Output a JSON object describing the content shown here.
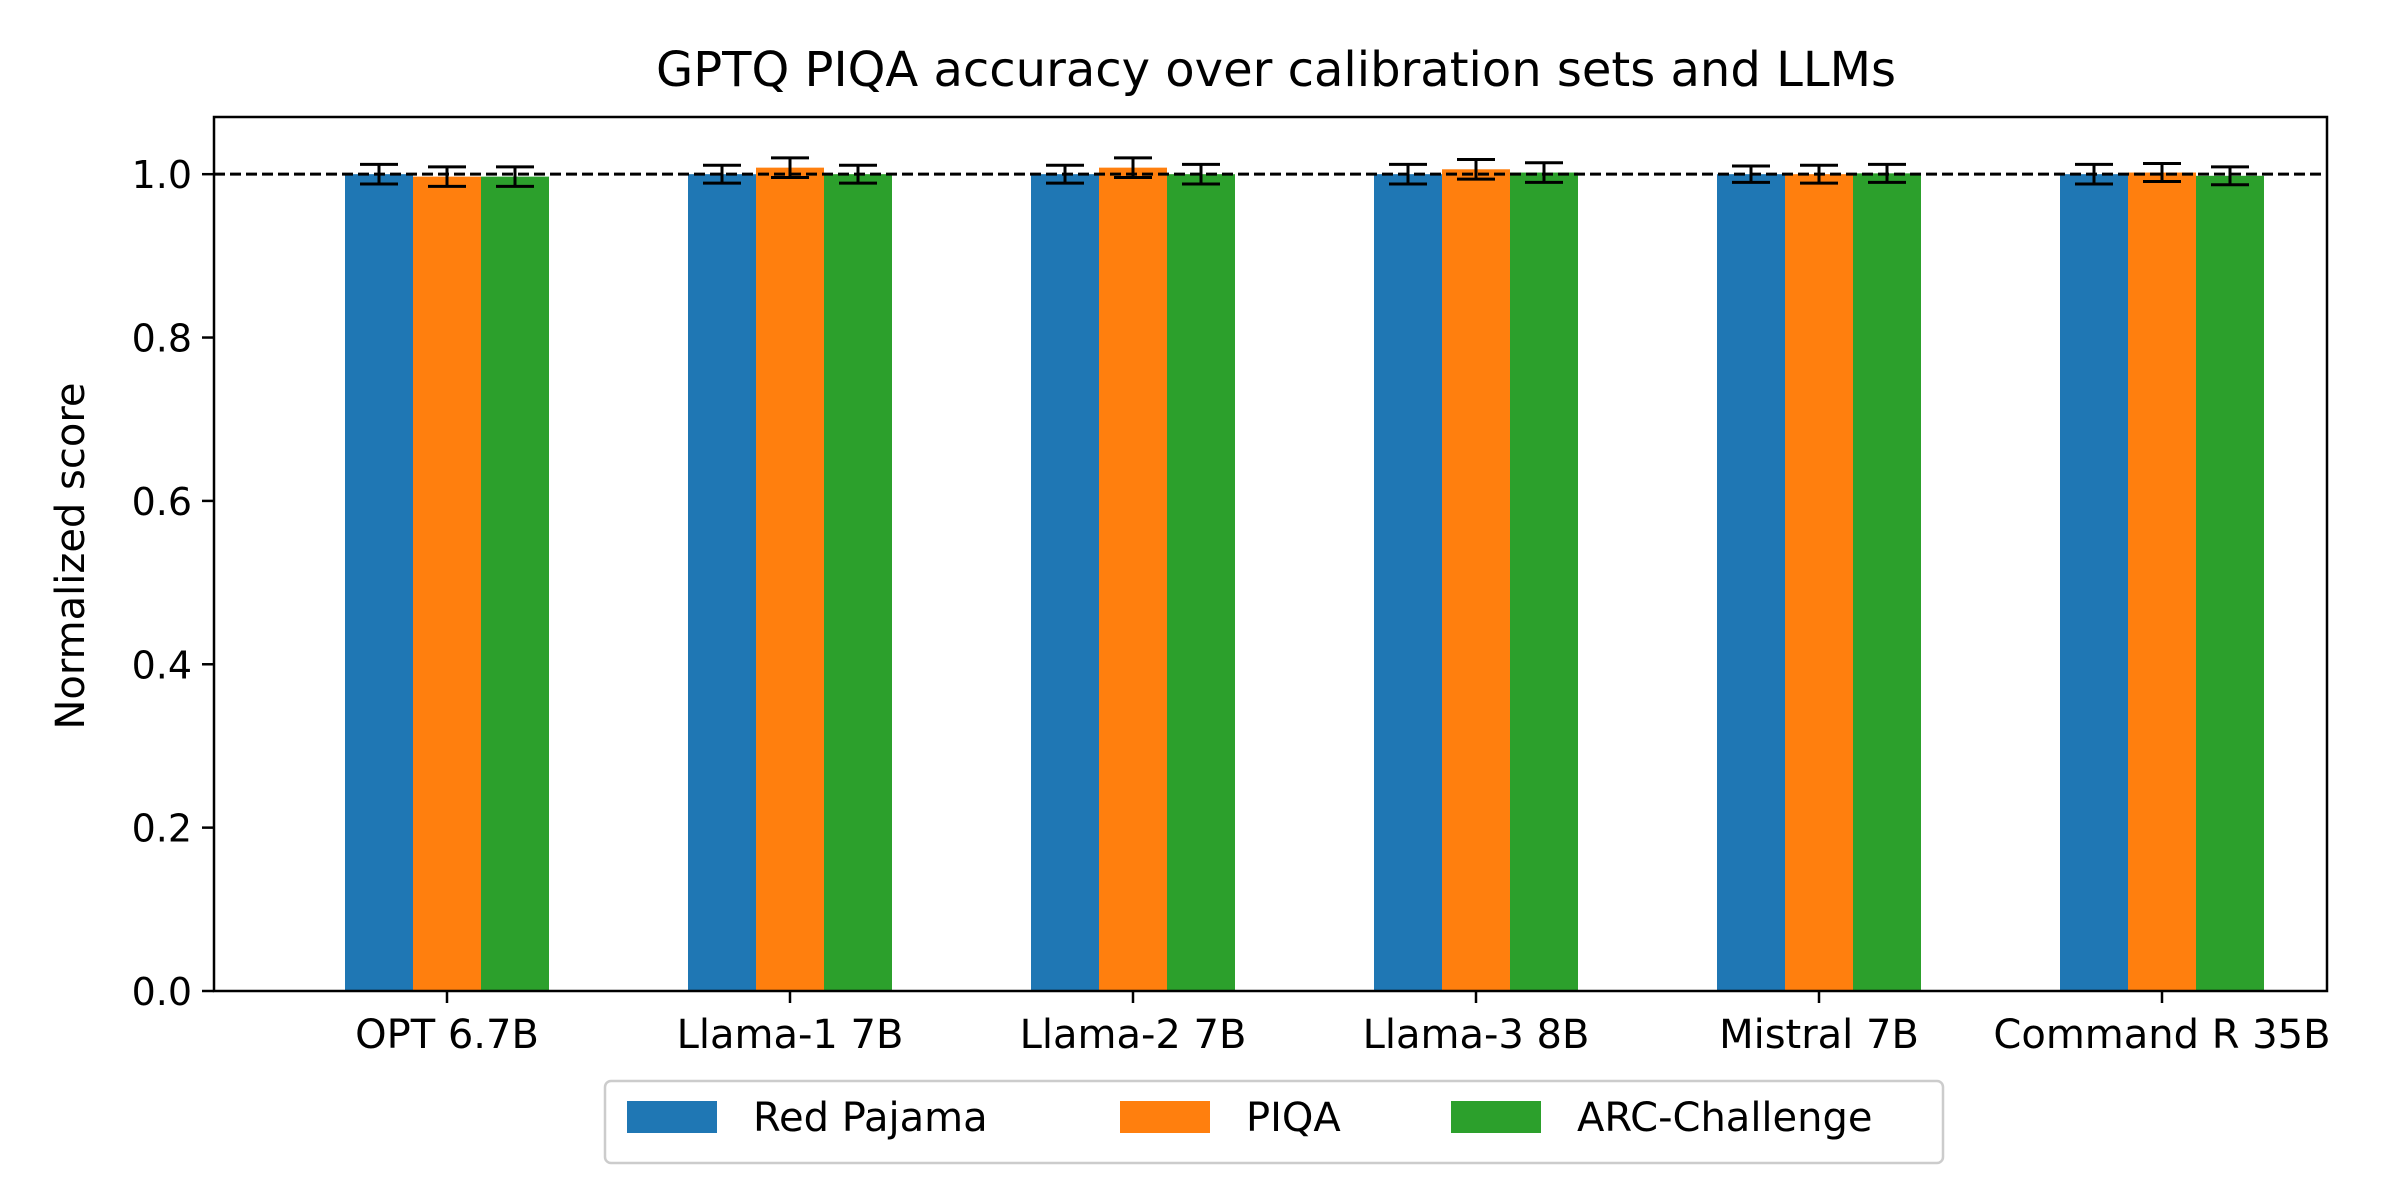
{
  "chart_data": {
    "type": "bar",
    "title": "GPTQ PIQA accuracy over calibration sets and LLMs",
    "xlabel": "",
    "ylabel": "Normalized score",
    "ylim": [
      0,
      1.07
    ],
    "yticks": [
      0.0,
      0.2,
      0.4,
      0.6,
      0.8,
      1.0
    ],
    "ytick_labels": [
      "0.0",
      "0.2",
      "0.4",
      "0.6",
      "0.8",
      "1.0"
    ],
    "reference_line": 1.0,
    "grid": false,
    "legend_position": "bottom-center",
    "categories": [
      "OPT 6.7B",
      "Llama-1 7B",
      "Llama-2 7B",
      "Llama-3 8B",
      "Mistral 7B",
      "Command R 35B"
    ],
    "series": [
      {
        "name": "Red Pajama",
        "color": "#1f77b4",
        "values": [
          1.0,
          1.0,
          1.0,
          1.0,
          1.0,
          1.0
        ],
        "errors": [
          0.012,
          0.011,
          0.011,
          0.012,
          0.01,
          0.012
        ]
      },
      {
        "name": "PIQA",
        "color": "#ff7f0e",
        "values": [
          0.997,
          1.008,
          1.008,
          1.006,
          1.0,
          1.002
        ],
        "errors": [
          0.012,
          0.012,
          0.012,
          0.012,
          0.011,
          0.011
        ]
      },
      {
        "name": "ARC-Challenge",
        "color": "#2ca02c",
        "values": [
          0.997,
          1.0,
          1.0,
          1.002,
          1.001,
          0.998
        ],
        "errors": [
          0.012,
          0.011,
          0.012,
          0.012,
          0.011,
          0.011
        ]
      }
    ]
  }
}
